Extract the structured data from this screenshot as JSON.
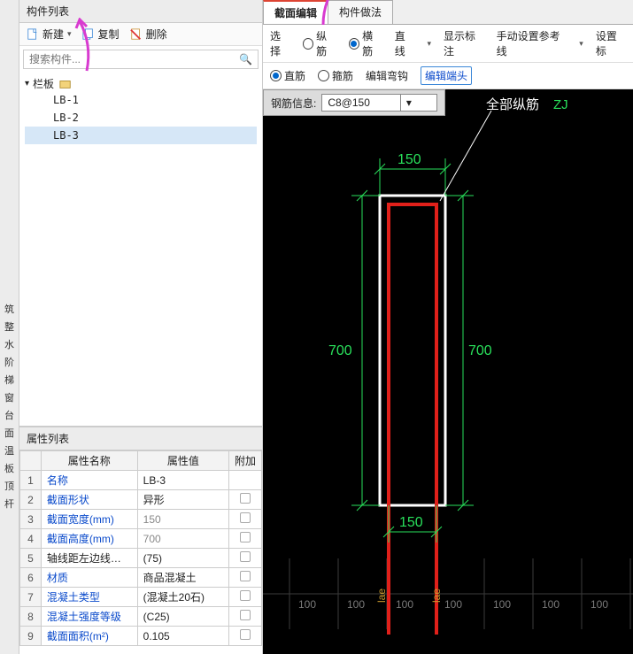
{
  "leftStrip": [
    "筑",
    "整",
    "水",
    "阶",
    "梯",
    "窗",
    "台",
    "面",
    "温",
    "板",
    "顶",
    "杆"
  ],
  "componentList": {
    "title": "构件列表",
    "toolbar": {
      "new": "新建",
      "copy": "复制",
      "delete": "删除",
      "dropdown": "▾"
    },
    "searchPlaceholder": "搜索构件...",
    "tree": {
      "root": "栏板",
      "rootArrow": "▾",
      "children": [
        "LB-1",
        "LB-2",
        "LB-3"
      ],
      "selected": "LB-3"
    }
  },
  "propsPanel": {
    "title": "属性列表",
    "headers": {
      "name": "属性名称",
      "value": "属性值",
      "extra": "附加"
    },
    "rows": [
      {
        "n": "1",
        "name": "名称",
        "val": "LB-3",
        "link": true
      },
      {
        "n": "2",
        "name": "截面形状",
        "val": "异形",
        "link": true
      },
      {
        "n": "3",
        "name": "截面宽度(mm)",
        "val": "150",
        "dim": true,
        "link": true
      },
      {
        "n": "4",
        "name": "截面高度(mm)",
        "val": "700",
        "dim": true,
        "link": true
      },
      {
        "n": "5",
        "name": "轴线距左边线…",
        "val": "(75)",
        "link": false
      },
      {
        "n": "6",
        "name": "材质",
        "val": "商品混凝土",
        "link": true
      },
      {
        "n": "7",
        "name": "混凝土类型",
        "val": "(混凝土20石)",
        "link": true
      },
      {
        "n": "8",
        "name": "混凝土强度等级",
        "val": "(C25)",
        "link": true
      },
      {
        "n": "9",
        "name": "截面面积(m²)",
        "val": "0.105",
        "link": true
      }
    ]
  },
  "editor": {
    "tabs": {
      "t1": "截面编辑",
      "t2": "构件做法"
    },
    "row1": {
      "select": "选择",
      "zong": "纵筋",
      "heng": "横筋",
      "line": "直线",
      "show": "显示标注",
      "manual": "手动设置参考线",
      "set": "设置标"
    },
    "row2": {
      "zhi": "直筋",
      "gu": "箍筋",
      "edithook": "编辑弯钩",
      "editend": "编辑端头"
    },
    "rebarInfo": {
      "label": "钢筋信息:",
      "value": "C8@150"
    },
    "drawing": {
      "topDim": "150",
      "leftDim": "700",
      "rightDim": "700",
      "bottomDim": "150",
      "lae": "lae",
      "legendLabel": "全部纵筋",
      "legendCode": "ZJ",
      "scale": [
        "100",
        "100",
        "100",
        "100",
        "100",
        "100",
        "100"
      ],
      "colors": {
        "bg": "#000000",
        "dim": "#29e05b",
        "rebar": "#e0201a",
        "outline": "#ffffff",
        "grid": "#3b3b3b",
        "legend": "#ffffff",
        "code": "#29e05b",
        "lae": "#c99a2e",
        "scale": "#7a7a7a"
      }
    }
  }
}
